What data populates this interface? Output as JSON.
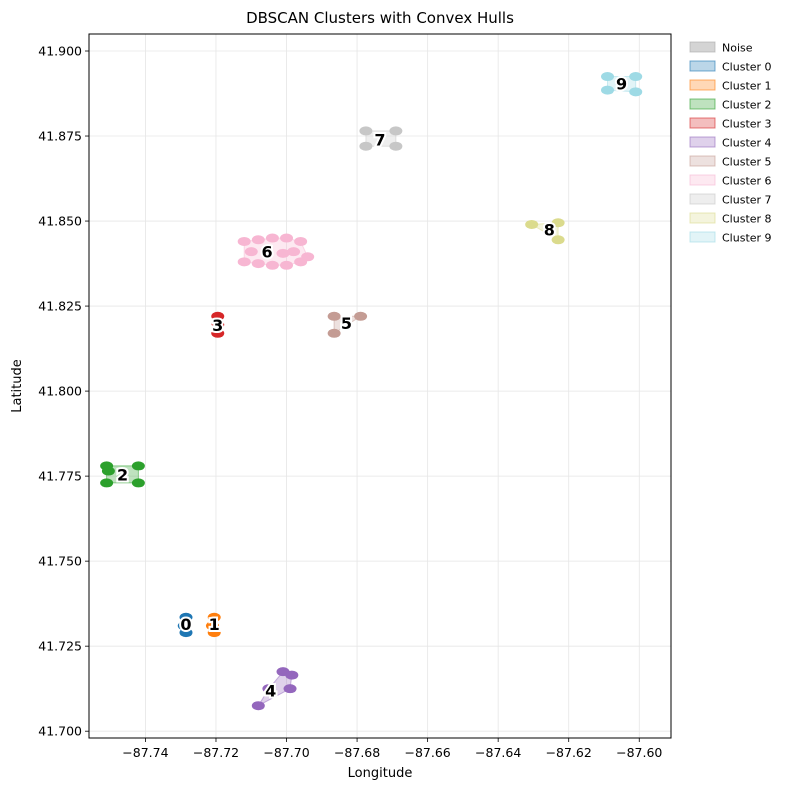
{
  "chart_data": {
    "type": "scatter",
    "title": "DBSCAN Clusters with Convex Hulls",
    "xlabel": "Longitude",
    "ylabel": "Latitude",
    "xlim": [
      -87.756,
      -87.591
    ],
    "ylim": [
      41.698,
      41.905
    ],
    "xticks": [
      -87.74,
      -87.72,
      -87.7,
      -87.68,
      -87.66,
      -87.64,
      -87.62,
      -87.6
    ],
    "xtick_labels": [
      "−87.74",
      "−87.72",
      "−87.70",
      "−87.68",
      "−87.66",
      "−87.64",
      "−87.62",
      "−87.60"
    ],
    "yticks": [
      41.7,
      41.725,
      41.75,
      41.775,
      41.8,
      41.825,
      41.85,
      41.875,
      41.9
    ],
    "ytick_labels": [
      "41.700",
      "41.725",
      "41.750",
      "41.775",
      "41.800",
      "41.825",
      "41.850",
      "41.875",
      "41.900"
    ],
    "grid": true,
    "legend_position": "outside-top-right",
    "legend": [
      "Noise",
      "Cluster 0",
      "Cluster 1",
      "Cluster 2",
      "Cluster 3",
      "Cluster 4",
      "Cluster 5",
      "Cluster 6",
      "Cluster 7",
      "Cluster 8",
      "Cluster 9"
    ],
    "noise_color": "#a9a9a9",
    "clusters": [
      {
        "id": 0,
        "label": "0",
        "color": "#1f77b4",
        "label_pos": [
          -87.7285,
          41.7315
        ],
        "points": [
          [
            -87.7285,
            41.7335
          ],
          [
            -87.7285,
            41.729
          ],
          [
            -87.729,
            41.731
          ]
        ]
      },
      {
        "id": 1,
        "label": "1",
        "color": "#ff7f0e",
        "label_pos": [
          -87.7205,
          41.7315
        ],
        "points": [
          [
            -87.7205,
            41.7335
          ],
          [
            -87.7205,
            41.729
          ],
          [
            -87.721,
            41.731
          ]
        ]
      },
      {
        "id": 2,
        "label": "2",
        "color": "#2ca02c",
        "label_pos": [
          -87.7465,
          41.7755
        ],
        "points": [
          [
            -87.751,
            41.778
          ],
          [
            -87.742,
            41.778
          ],
          [
            -87.751,
            41.773
          ],
          [
            -87.742,
            41.773
          ],
          [
            -87.7505,
            41.7765
          ]
        ]
      },
      {
        "id": 3,
        "label": "3",
        "color": "#d62728",
        "label_pos": [
          -87.7195,
          41.8195
        ],
        "points": [
          [
            -87.7195,
            41.822
          ],
          [
            -87.7195,
            41.817
          ],
          [
            -87.7195,
            41.8195
          ]
        ]
      },
      {
        "id": 4,
        "label": "4",
        "color": "#9467bd",
        "label_pos": [
          -87.7045,
          41.712
        ],
        "points": [
          [
            -87.708,
            41.7075
          ],
          [
            -87.705,
            41.7125
          ],
          [
            -87.699,
            41.7125
          ],
          [
            -87.701,
            41.7175
          ],
          [
            -87.6985,
            41.7165
          ]
        ]
      },
      {
        "id": 5,
        "label": "5",
        "color": "#c49c94",
        "label_pos": [
          -87.683,
          41.82
        ],
        "points": [
          [
            -87.6865,
            41.822
          ],
          [
            -87.6865,
            41.817
          ],
          [
            -87.679,
            41.822
          ]
        ]
      },
      {
        "id": 6,
        "label": "6",
        "color": "#f7b6d2",
        "label_pos": [
          -87.7055,
          41.841
        ],
        "points": [
          [
            -87.712,
            41.844
          ],
          [
            -87.708,
            41.8445
          ],
          [
            -87.704,
            41.845
          ],
          [
            -87.7,
            41.845
          ],
          [
            -87.696,
            41.844
          ],
          [
            -87.712,
            41.838
          ],
          [
            -87.708,
            41.8375
          ],
          [
            -87.704,
            41.837
          ],
          [
            -87.7,
            41.837
          ],
          [
            -87.696,
            41.838
          ],
          [
            -87.71,
            41.841
          ],
          [
            -87.698,
            41.841
          ],
          [
            -87.694,
            41.8395
          ],
          [
            -87.701,
            41.8405
          ]
        ]
      },
      {
        "id": 7,
        "label": "7",
        "color": "#c7c7c7",
        "label_pos": [
          -87.6735,
          41.874
        ],
        "points": [
          [
            -87.6775,
            41.8765
          ],
          [
            -87.669,
            41.8765
          ],
          [
            -87.6775,
            41.872
          ],
          [
            -87.669,
            41.872
          ]
        ]
      },
      {
        "id": 8,
        "label": "8",
        "color": "#dbdb8d",
        "label_pos": [
          -87.6255,
          41.8475
        ],
        "points": [
          [
            -87.6305,
            41.849
          ],
          [
            -87.623,
            41.8495
          ],
          [
            -87.623,
            41.8445
          ]
        ]
      },
      {
        "id": 9,
        "label": "9",
        "color": "#9edae5",
        "label_pos": [
          -87.605,
          41.8905
        ],
        "points": [
          [
            -87.609,
            41.8925
          ],
          [
            -87.601,
            41.8925
          ],
          [
            -87.609,
            41.8885
          ],
          [
            -87.601,
            41.888
          ],
          [
            -87.605,
            41.8905
          ]
        ]
      }
    ]
  }
}
